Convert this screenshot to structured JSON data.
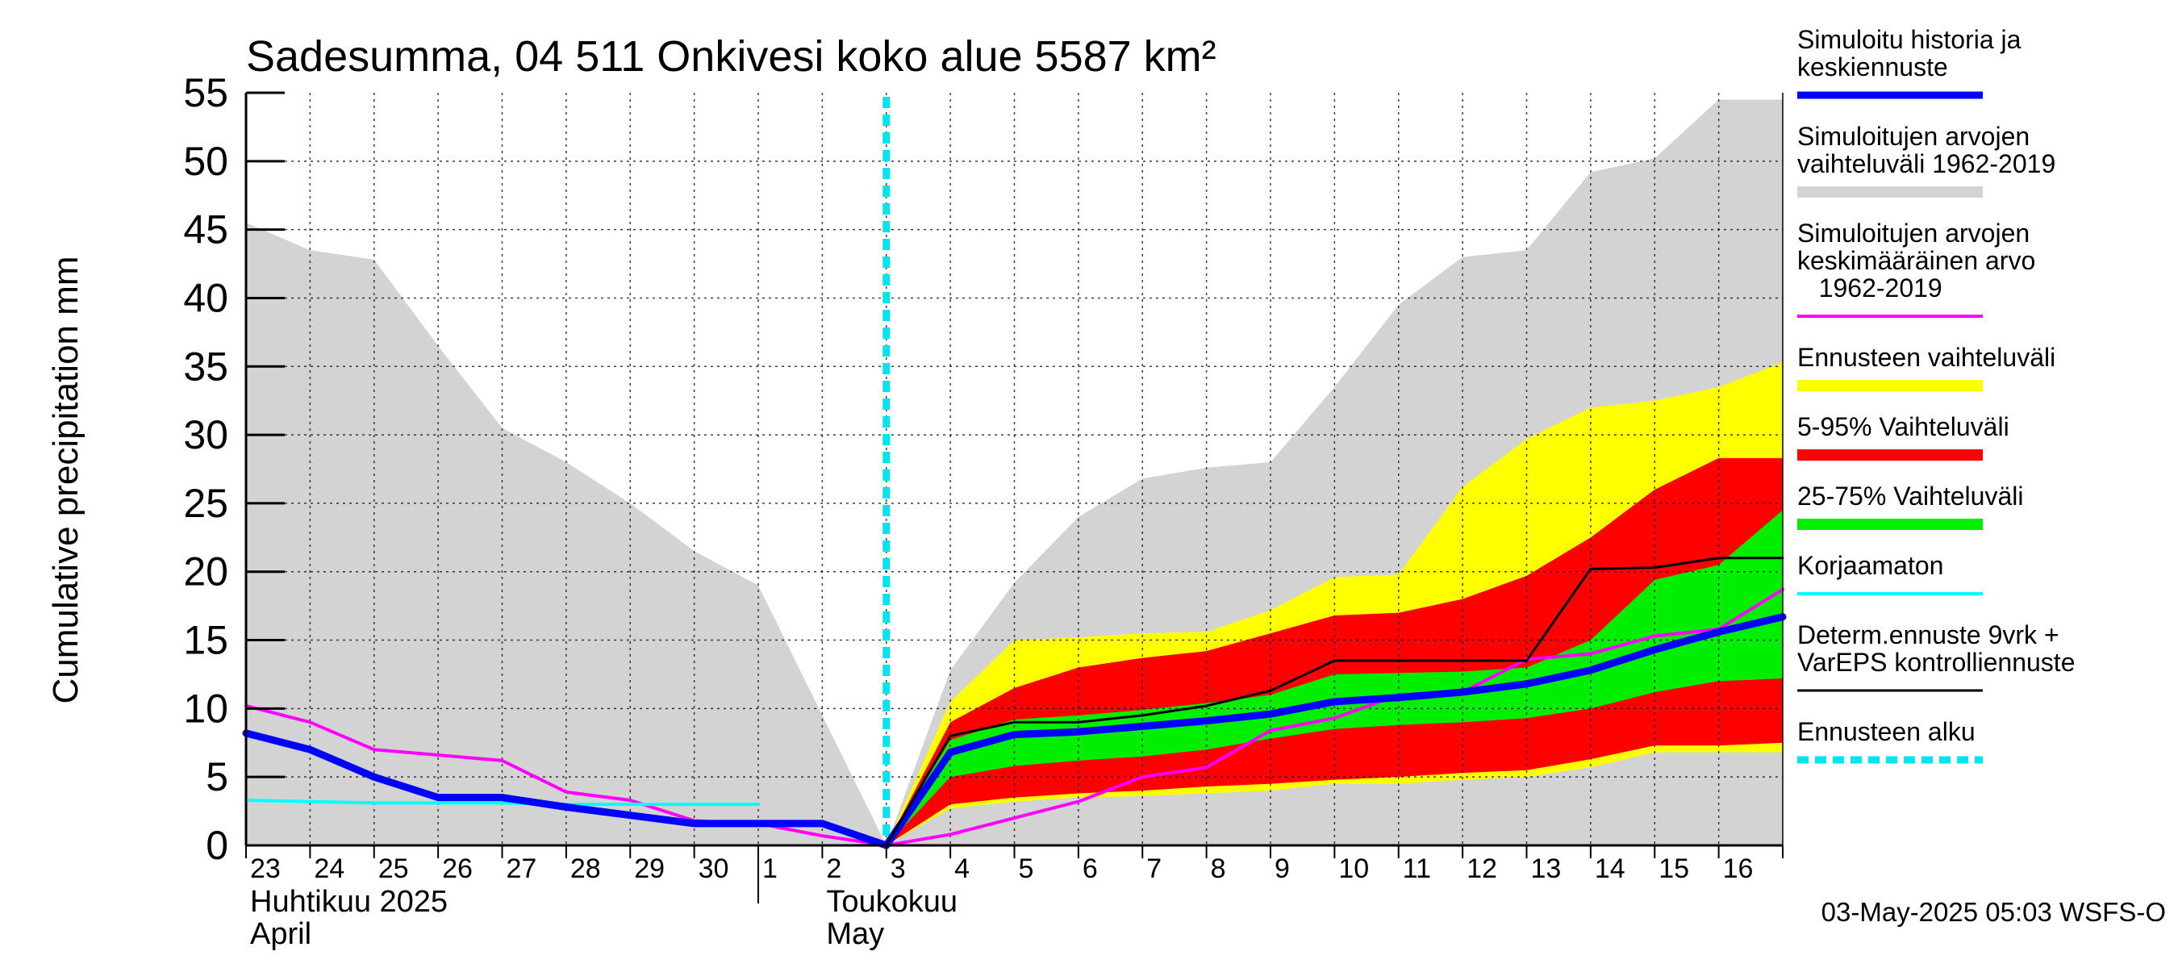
{
  "chart_data": {
    "type": "area",
    "title": "Sadesumma, 04 511 Onkivesi koko alue 5587 km²",
    "ylabel": "Cumulative precipitation   mm",
    "ylim": [
      0,
      55
    ],
    "yticks": [
      0,
      5,
      10,
      15,
      20,
      25,
      30,
      35,
      40,
      45,
      50,
      55
    ],
    "grid": true,
    "legend_position": "right",
    "x_tick_labels": [
      "23",
      "24",
      "25",
      "26",
      "27",
      "28",
      "29",
      "30",
      "1",
      "2",
      "3",
      "4",
      "5",
      "6",
      "7",
      "8",
      "9",
      "10",
      "11",
      "12",
      "13",
      "14",
      "15",
      "16"
    ],
    "month_labels": [
      {
        "line1": "Huhtikuu  2025",
        "line2": "April"
      },
      {
        "line1": "Toukokuu",
        "line2": "May"
      }
    ],
    "forecast_start_day": 10,
    "footer": "03-May-2025 05:03 WSFS-O",
    "legend": [
      {
        "label": [
          "Simuloitu historia ja",
          "keskiennuste"
        ],
        "color": "#0000ff",
        "style": "line"
      },
      {
        "label": [
          "Simuloitujen arvojen",
          "vaihteluväli 1962-2019"
        ],
        "color": "#d3d3d3",
        "style": "band"
      },
      {
        "label": [
          "Simuloitujen arvojen",
          "keskimääräinen arvo",
          "   1962-2019"
        ],
        "color": "#ff00ff",
        "style": "line"
      },
      {
        "label": [
          "Ennusteen vaihteluväli"
        ],
        "color": "#ffff00",
        "style": "band"
      },
      {
        "label": [
          "5-95% Vaihteluväli"
        ],
        "color": "#ff0000",
        "style": "band"
      },
      {
        "label": [
          "25-75% Vaihteluväli"
        ],
        "color": "#00ee00",
        "style": "band"
      },
      {
        "label": [
          "Korjaamaton"
        ],
        "color": "#00ffff",
        "style": "line"
      },
      {
        "label": [
          "Determ.ennuste 9vrk +",
          "VarEPS kontrolliennuste"
        ],
        "color": "#000000",
        "style": "line"
      },
      {
        "label": [
          "Ennusteen alku"
        ],
        "color": "#00e5ee",
        "style": "dashed"
      }
    ],
    "series": [
      {
        "name": "Simuloitujen arvojen vaihteluväli 1962-2019 (max)",
        "kind": "band_upper",
        "color": "#d3d3d3",
        "x": [
          0,
          1,
          2,
          3,
          4,
          5,
          6,
          7,
          8,
          9,
          10,
          11,
          12,
          13,
          14,
          15,
          16,
          17,
          18,
          19,
          20,
          21,
          22,
          23,
          24
        ],
        "values": [
          45.5,
          43.5,
          42.8,
          36.5,
          30.5,
          28.0,
          25.0,
          21.5,
          19.0,
          9.5,
          0,
          12.8,
          19.2,
          24.0,
          26.8,
          27.6,
          28.0,
          33.5,
          39.5,
          43.0,
          43.5,
          49.2,
          50.2,
          54.5,
          54.5
        ]
      },
      {
        "name": "Simuloitujen arvojen vaihteluväli 1962-2019 (min)",
        "kind": "band_lower",
        "color": "#d3d3d3",
        "x": [
          0,
          24
        ],
        "values": [
          0,
          0
        ]
      },
      {
        "name": "Ennusteen vaihteluväli (max)",
        "kind": "band_upper",
        "color": "#ffff00",
        "x": [
          10,
          11,
          12,
          13,
          14,
          15,
          16,
          17,
          18,
          19,
          20,
          21,
          22,
          23,
          24
        ],
        "values": [
          0,
          10.5,
          15.0,
          15.2,
          15.5,
          15.6,
          17.2,
          19.6,
          19.8,
          26.2,
          29.7,
          32.0,
          32.5,
          33.5,
          35.3
        ]
      },
      {
        "name": "Ennusteen vaihteluväli (min)",
        "kind": "band_lower",
        "color": "#ffff00",
        "x": [
          10,
          11,
          12,
          13,
          14,
          15,
          16,
          17,
          18,
          19,
          20,
          21,
          22,
          23,
          24
        ],
        "values": [
          0,
          2.7,
          3.2,
          3.5,
          3.6,
          3.8,
          4.0,
          4.5,
          4.5,
          4.8,
          5.0,
          5.7,
          6.8,
          6.8,
          6.8
        ]
      },
      {
        "name": "5-95% Vaihteluväli (max)",
        "kind": "band_upper",
        "color": "#ff0000",
        "x": [
          10,
          11,
          12,
          13,
          14,
          15,
          16,
          17,
          18,
          19,
          20,
          21,
          22,
          23,
          24
        ],
        "values": [
          0,
          9.0,
          11.5,
          13.0,
          13.7,
          14.2,
          15.5,
          16.8,
          17.0,
          18.0,
          19.7,
          22.5,
          26.0,
          28.3,
          28.3
        ]
      },
      {
        "name": "5-95% Vaihteluväli (min)",
        "kind": "band_lower",
        "color": "#ff0000",
        "x": [
          10,
          11,
          12,
          13,
          14,
          15,
          16,
          17,
          18,
          19,
          20,
          21,
          22,
          23,
          24
        ],
        "values": [
          0,
          3.0,
          3.5,
          3.8,
          4.0,
          4.3,
          4.5,
          4.8,
          5.0,
          5.3,
          5.5,
          6.3,
          7.3,
          7.3,
          7.5
        ]
      },
      {
        "name": "25-75% Vaihteluväli (max)",
        "kind": "band_upper",
        "color": "#00ee00",
        "x": [
          10,
          11,
          12,
          13,
          14,
          15,
          16,
          17,
          18,
          19,
          20,
          21,
          22,
          23,
          24
        ],
        "values": [
          0,
          7.7,
          9.2,
          9.5,
          9.9,
          10.4,
          11.0,
          12.5,
          12.6,
          12.7,
          13.0,
          15.0,
          19.4,
          20.5,
          24.5
        ]
      },
      {
        "name": "25-75% Vaihteluväli (min)",
        "kind": "band_lower",
        "color": "#00ee00",
        "x": [
          10,
          11,
          12,
          13,
          14,
          15,
          16,
          17,
          18,
          19,
          20,
          21,
          22,
          23,
          24
        ],
        "values": [
          0,
          5.0,
          5.8,
          6.2,
          6.5,
          7.0,
          7.8,
          8.5,
          8.8,
          9.0,
          9.3,
          10.0,
          11.2,
          12.0,
          12.2
        ]
      },
      {
        "name": "Simuloitujen arvojen keskimääräinen arvo 1962-2019",
        "kind": "line",
        "color": "#ff00ff",
        "width": 4,
        "x": [
          0,
          1,
          2,
          3,
          4,
          5,
          6,
          7,
          8,
          9,
          10,
          11,
          12,
          13,
          14,
          15,
          16,
          17,
          18,
          19,
          20,
          21,
          22,
          23,
          24
        ],
        "values": [
          10.2,
          9.0,
          7.0,
          6.6,
          6.2,
          3.9,
          3.3,
          1.8,
          1.6,
          0.7,
          0,
          0.8,
          2.0,
          3.2,
          5.0,
          5.7,
          8.4,
          9.3,
          11.0,
          11.2,
          13.6,
          14.0,
          15.3,
          15.8,
          18.7
        ]
      },
      {
        "name": "Korjaamaton",
        "kind": "line",
        "color": "#00ffff",
        "width": 4,
        "x": [
          0,
          1,
          2,
          3,
          4,
          5,
          6,
          7,
          8
        ],
        "values": [
          3.3,
          3.2,
          3.1,
          3.1,
          3.1,
          3.0,
          3.0,
          3.0,
          3.0
        ]
      },
      {
        "name": "Simuloitu historia ja keskiennuste",
        "kind": "line",
        "color": "#0000ff",
        "width": 9,
        "x": [
          0,
          1,
          2,
          3,
          4,
          5,
          6,
          7,
          8,
          9,
          10,
          11,
          12,
          13,
          14,
          15,
          16,
          17,
          18,
          19,
          20,
          21,
          22,
          23,
          24
        ],
        "values": [
          8.2,
          7.0,
          5.0,
          3.5,
          3.5,
          2.8,
          2.2,
          1.6,
          1.6,
          1.6,
          0,
          6.8,
          8.1,
          8.3,
          8.7,
          9.1,
          9.6,
          10.5,
          10.8,
          11.2,
          11.8,
          12.8,
          14.3,
          15.6,
          16.7
        ]
      },
      {
        "name": "Determ.ennuste 9vrk + VarEPS kontrolliennuste",
        "kind": "line",
        "color": "#000000",
        "width": 3,
        "x": [
          10,
          11,
          12,
          13,
          14,
          15,
          16,
          17,
          18,
          19,
          20,
          21,
          22,
          23,
          24
        ],
        "values": [
          0,
          8.0,
          9.0,
          9.0,
          9.5,
          10.2,
          11.3,
          13.5,
          13.5,
          13.5,
          13.5,
          20.2,
          20.3,
          21.0,
          21.0
        ]
      }
    ]
  }
}
